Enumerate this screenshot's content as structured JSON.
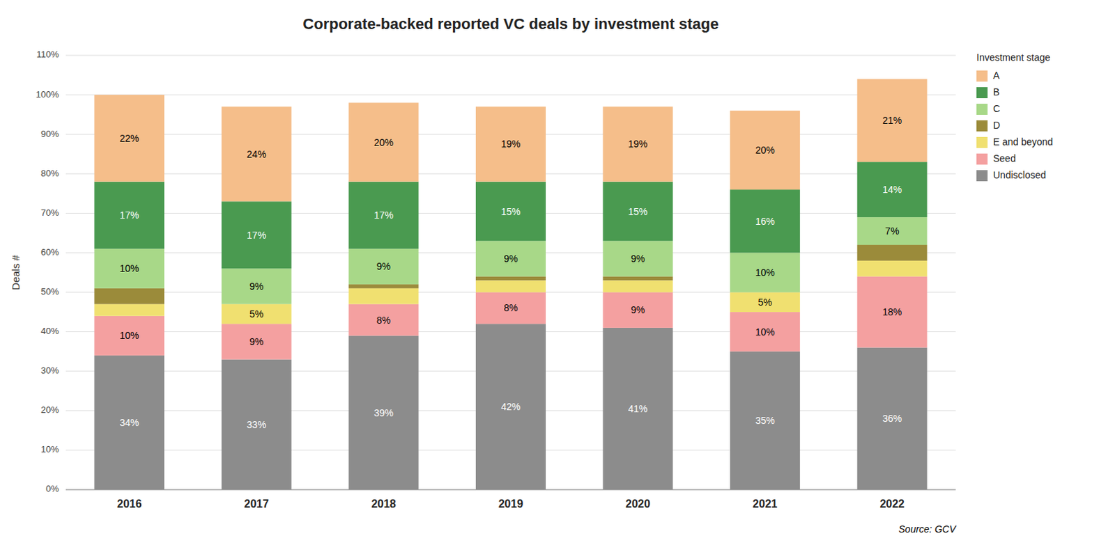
{
  "chart_data": {
    "type": "bar",
    "stacked": true,
    "title": "Corporate-backed reported VC deals by investment stage",
    "y_label": "Deals #",
    "source": "Source: GCV",
    "legend_title": "Investment stage",
    "legend": "right",
    "grid": true,
    "data_labels": true,
    "categories": [
      "2016",
      "2017",
      "2018",
      "2019",
      "2020",
      "2021",
      "2022"
    ],
    "series": [
      {
        "name": "Undisclosed",
        "color": "#8C8C8C",
        "values": [
          34,
          33,
          39,
          42,
          41,
          35,
          36
        ],
        "value_labels": [
          "34%",
          "33%",
          "39%",
          "42%",
          "41%",
          "35%",
          "36%"
        ]
      },
      {
        "name": "Seed",
        "color": "#F4A0A0",
        "values": [
          10,
          9,
          8,
          8,
          9,
          10,
          18
        ],
        "value_labels": [
          "10%",
          "9%",
          "8%",
          "8%",
          "9%",
          "10%",
          "18%"
        ]
      },
      {
        "name": "E and beyond",
        "color": "#F0E070",
        "values": [
          3,
          5,
          4,
          3,
          3,
          5,
          4
        ],
        "value_labels": [
          null,
          "5%",
          null,
          null,
          null,
          "5%",
          null
        ]
      },
      {
        "name": "D",
        "color": "#9B8B3A",
        "values": [
          4,
          0,
          1,
          1,
          1,
          0,
          4
        ]
      },
      {
        "name": "C",
        "color": "#A8D888",
        "values": [
          10,
          9,
          9,
          9,
          9,
          10,
          7
        ],
        "value_labels": [
          "10%",
          "9%",
          "9%",
          "9%",
          "9%",
          "10%",
          "7%"
        ]
      },
      {
        "name": "B",
        "color": "#4A9A50",
        "values": [
          17,
          17,
          17,
          15,
          15,
          16,
          14
        ],
        "value_labels": [
          "17%",
          "17%",
          "17%",
          "15%",
          "15%",
          "16%",
          "14%"
        ]
      },
      {
        "name": "A",
        "color": "#F5BE8A",
        "values": [
          22,
          24,
          20,
          19,
          19,
          20,
          21
        ],
        "value_labels": [
          "22%",
          "24%",
          "20%",
          "19%",
          "19%",
          "20%",
          "21%"
        ]
      }
    ],
    "ylim": [
      0,
      110
    ],
    "yticks": [
      {
        "value": 0,
        "label": "0%"
      },
      {
        "value": 10,
        "label": "10%"
      },
      {
        "value": 20,
        "label": "20%"
      },
      {
        "value": 30,
        "label": "30%"
      },
      {
        "value": 40,
        "label": "40%"
      },
      {
        "value": 50,
        "label": "50%"
      },
      {
        "value": 60,
        "label": "60%"
      },
      {
        "value": 70,
        "label": "70%"
      },
      {
        "value": 80,
        "label": "80%"
      },
      {
        "value": 90,
        "label": "90%"
      },
      {
        "value": 100,
        "label": "100%"
      },
      {
        "value": 110,
        "label": "110%"
      }
    ]
  }
}
